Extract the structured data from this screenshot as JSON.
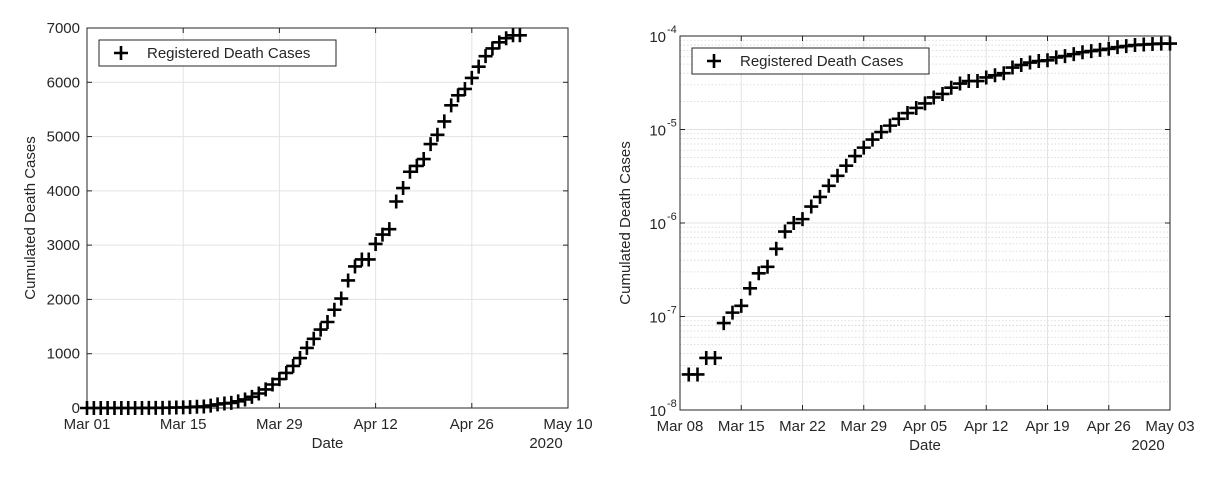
{
  "chart_data": [
    {
      "type": "scatter",
      "xlabel": "Date",
      "ylabel": "Cumulated Death Cases",
      "year_label": "2020",
      "marker": "+",
      "grid": true,
      "legend_position": "top-left",
      "xlim": [
        "2020-03-01",
        "2020-05-10"
      ],
      "ylim": [
        0,
        7000
      ],
      "x_ticks": [
        "Mar 01",
        "Mar 15",
        "Mar 29",
        "Apr 12",
        "Apr 26",
        "May 10"
      ],
      "y_ticks": [
        "0",
        "1000",
        "2000",
        "3000",
        "4000",
        "5000",
        "6000",
        "7000"
      ],
      "series": [
        {
          "name": "Registered Death Cases",
          "color": "#000000",
          "x": [
            "2020-03-01",
            "2020-03-02",
            "2020-03-03",
            "2020-03-04",
            "2020-03-05",
            "2020-03-06",
            "2020-03-07",
            "2020-03-08",
            "2020-03-09",
            "2020-03-10",
            "2020-03-11",
            "2020-03-12",
            "2020-03-13",
            "2020-03-14",
            "2020-03-15",
            "2020-03-16",
            "2020-03-17",
            "2020-03-18",
            "2020-03-19",
            "2020-03-20",
            "2020-03-21",
            "2020-03-22",
            "2020-03-23",
            "2020-03-24",
            "2020-03-25",
            "2020-03-26",
            "2020-03-27",
            "2020-03-28",
            "2020-03-29",
            "2020-03-30",
            "2020-03-31",
            "2020-04-01",
            "2020-04-02",
            "2020-04-03",
            "2020-04-04",
            "2020-04-05",
            "2020-04-06",
            "2020-04-07",
            "2020-04-08",
            "2020-04-09",
            "2020-04-10",
            "2020-04-11",
            "2020-04-12",
            "2020-04-13",
            "2020-04-14",
            "2020-04-15",
            "2020-04-16",
            "2020-04-17",
            "2020-04-18",
            "2020-04-19",
            "2020-04-20",
            "2020-04-21",
            "2020-04-22",
            "2020-04-23",
            "2020-04-24",
            "2020-04-25",
            "2020-04-26",
            "2020-04-27",
            "2020-04-28",
            "2020-04-29",
            "2020-04-30",
            "2020-05-01",
            "2020-05-02",
            "2020-05-03"
          ],
          "y": [
            0,
            0,
            0,
            0,
            0,
            0,
            0,
            0,
            1,
            2,
            3,
            3,
            7,
            9,
            11,
            17,
            24,
            28,
            44,
            67,
            84,
            94,
            123,
            157,
            206,
            267,
            342,
            433,
            533,
            645,
            775,
            920,
            1107,
            1275,
            1444,
            1584,
            1810,
            2016,
            2349,
            2607,
            2736,
            2736,
            3022,
            3194,
            3294,
            3804,
            4052,
            4352,
            4459,
            4586,
            4862,
            5033,
            5279,
            5575,
            5760,
            5877,
            6081,
            6288,
            6481,
            6623,
            6736,
            6812,
            6866,
            6866
          ]
        }
      ]
    },
    {
      "type": "scatter",
      "xlabel": "Date",
      "ylabel": "Cumulated Death Cases",
      "year_label": "2020",
      "marker": "+",
      "grid": true,
      "y_scale": "log",
      "legend_position": "top-left",
      "xlim": [
        "2020-03-08",
        "2020-05-03"
      ],
      "ylim": [
        1e-08,
        0.0001
      ],
      "x_ticks": [
        "Mar 08",
        "Mar 15",
        "Mar 22",
        "Mar 29",
        "Apr 05",
        "Apr 12",
        "Apr 19",
        "Apr 26",
        "May 03"
      ],
      "y_ticks": [
        {
          "base": "10",
          "exp": "-8"
        },
        {
          "base": "10",
          "exp": "-7"
        },
        {
          "base": "10",
          "exp": "-6"
        },
        {
          "base": "10",
          "exp": "-5"
        },
        {
          "base": "10",
          "exp": "-4"
        }
      ],
      "series": [
        {
          "name": "Registered Death Cases",
          "color": "#000000",
          "x": [
            "2020-03-09",
            "2020-03-10",
            "2020-03-11",
            "2020-03-12",
            "2020-03-13",
            "2020-03-14",
            "2020-03-15",
            "2020-03-16",
            "2020-03-17",
            "2020-03-18",
            "2020-03-19",
            "2020-03-20",
            "2020-03-21",
            "2020-03-22",
            "2020-03-23",
            "2020-03-24",
            "2020-03-25",
            "2020-03-26",
            "2020-03-27",
            "2020-03-28",
            "2020-03-29",
            "2020-03-30",
            "2020-03-31",
            "2020-04-01",
            "2020-04-02",
            "2020-04-03",
            "2020-04-04",
            "2020-04-05",
            "2020-04-06",
            "2020-04-07",
            "2020-04-08",
            "2020-04-09",
            "2020-04-10",
            "2020-04-11",
            "2020-04-12",
            "2020-04-13",
            "2020-04-14",
            "2020-04-15",
            "2020-04-16",
            "2020-04-17",
            "2020-04-18",
            "2020-04-19",
            "2020-04-20",
            "2020-04-21",
            "2020-04-22",
            "2020-04-23",
            "2020-04-24",
            "2020-04-25",
            "2020-04-26",
            "2020-04-27",
            "2020-04-28",
            "2020-04-29",
            "2020-04-30",
            "2020-05-01",
            "2020-05-02",
            "2020-05-03"
          ],
          "y": [
            2.4e-08,
            2.4e-08,
            3.6e-08,
            3.6e-08,
            8.5e-08,
            1.1e-07,
            1.3e-07,
            2e-07,
            2.9e-07,
            3.4e-07,
            5.3e-07,
            8.1e-07,
            1e-06,
            1.1e-06,
            1.5e-06,
            1.9e-06,
            2.5e-06,
            3.2e-06,
            4.1e-06,
            5.2e-06,
            6.4e-06,
            7.8e-06,
            9.4e-06,
            1.1e-05,
            1.3e-05,
            1.5e-05,
            1.7e-05,
            1.9e-05,
            2.2e-05,
            2.4e-05,
            2.8e-05,
            3.1e-05,
            3.3e-05,
            3.3e-05,
            3.6e-05,
            3.8e-05,
            4e-05,
            4.6e-05,
            4.9e-05,
            5.2e-05,
            5.4e-05,
            5.5e-05,
            5.9e-05,
            6.1e-05,
            6.4e-05,
            6.7e-05,
            6.9e-05,
            7.1e-05,
            7.3e-05,
            7.6e-05,
            7.8e-05,
            8e-05,
            8.1e-05,
            8.2e-05,
            8.3e-05,
            8.3e-05
          ]
        }
      ]
    }
  ]
}
